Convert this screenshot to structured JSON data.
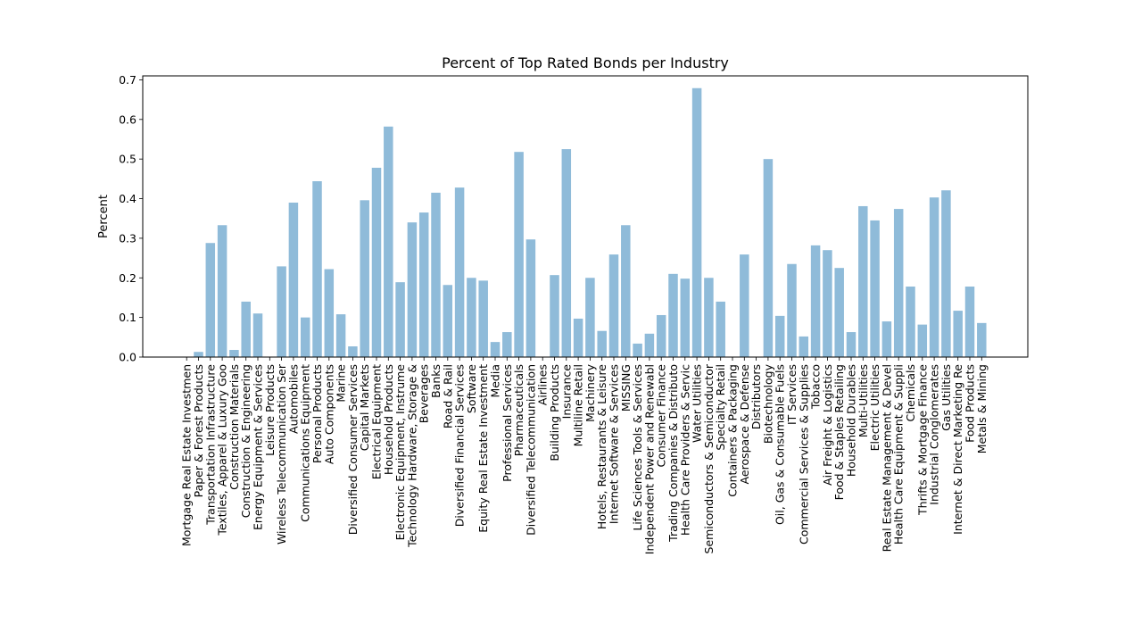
{
  "chart_data": {
    "type": "bar",
    "title": "Percent of Top Rated Bonds per Industry",
    "xlabel": "",
    "ylabel": "Percent",
    "ylim": [
      0,
      0.71
    ],
    "yticks": [
      0.0,
      0.1,
      0.2,
      0.3,
      0.4,
      0.5,
      0.6,
      0.7
    ],
    "ytick_labels": [
      "0.0",
      "0.1",
      "0.2",
      "0.3",
      "0.4",
      "0.5",
      "0.6",
      "0.7"
    ],
    "bar_color": "#8fbbd9",
    "categories": [
      "Mortgage Real Estate Investmen",
      "Paper & Forest Products",
      "Transportation Infrastructure",
      "Textiles, Apparel & Luxury Goo",
      "Construction Materials",
      "Construction & Engineering",
      "Energy Equipment & Services",
      "Leisure Products",
      "Wireless Telecommunication Ser",
      "Automobiles",
      "Communications Equipment",
      "Personal Products",
      "Auto Components",
      "Marine",
      "Diversified Consumer Services",
      "Capital Markets",
      "Electrical Equipment",
      "Household Products",
      "Electronic Equipment, Instrume",
      "Technology Hardware, Storage &",
      "Beverages",
      "Banks",
      "Road & Rail",
      "Diversified Financial Services",
      "Software",
      "Equity Real Estate Investment",
      "Media",
      "Professional Services",
      "Pharmaceuticals",
      "Diversified Telecommunication",
      "Airlines",
      "Building Products",
      "Insurance",
      "Multiline Retail",
      "Machinery",
      "Hotels, Restaurants & Leisure",
      "Internet Software & Services",
      "MISSING",
      "Life Sciences Tools & Services",
      "Independent Power and Renewabl",
      "Consumer Finance",
      "Trading Companies & Distributo",
      "Health Care Providers & Servic",
      "Water Utilities",
      "Semiconductors & Semiconductor",
      "Specialty Retail",
      "Containers & Packaging",
      "Aerospace & Defense",
      "Distributors",
      "Biotechnology",
      "Oil, Gas & Consumable Fuels",
      "IT Services",
      "Commercial Services & Supplies",
      "Tobacco",
      "Air Freight & Logistics",
      "Food & Staples Retailing",
      "Household Durables",
      "Multi-Utilities",
      "Electric Utilities",
      "Real Estate Management & Devel",
      "Health Care Equipment & Suppli",
      "Chemicals",
      "Thrifts & Mortgage Finance",
      "Industrial Conglomerates",
      "Gas Utilities",
      "Internet & Direct Marketing Re",
      "Food Products",
      "Metals & Mining"
    ],
    "values": [
      0.0,
      0.013,
      0.288,
      0.333,
      0.018,
      0.14,
      0.11,
      0.0,
      0.229,
      0.39,
      0.1,
      0.444,
      0.222,
      0.108,
      0.027,
      0.396,
      0.478,
      0.582,
      0.189,
      0.34,
      0.365,
      0.415,
      0.182,
      0.428,
      0.2,
      0.193,
      0.038,
      0.063,
      0.518,
      0.297,
      0.0,
      0.207,
      0.525,
      0.097,
      0.2,
      0.066,
      0.259,
      0.333,
      0.034,
      0.059,
      0.106,
      0.21,
      0.198,
      0.679,
      0.2,
      0.14,
      0.0,
      0.259,
      0.0,
      0.5,
      0.104,
      0.235,
      0.052,
      0.282,
      0.27,
      0.225,
      0.063,
      0.381,
      0.345,
      0.09,
      0.374,
      0.178,
      0.082,
      0.403,
      0.421,
      0.117,
      0.178,
      0.086
    ]
  }
}
